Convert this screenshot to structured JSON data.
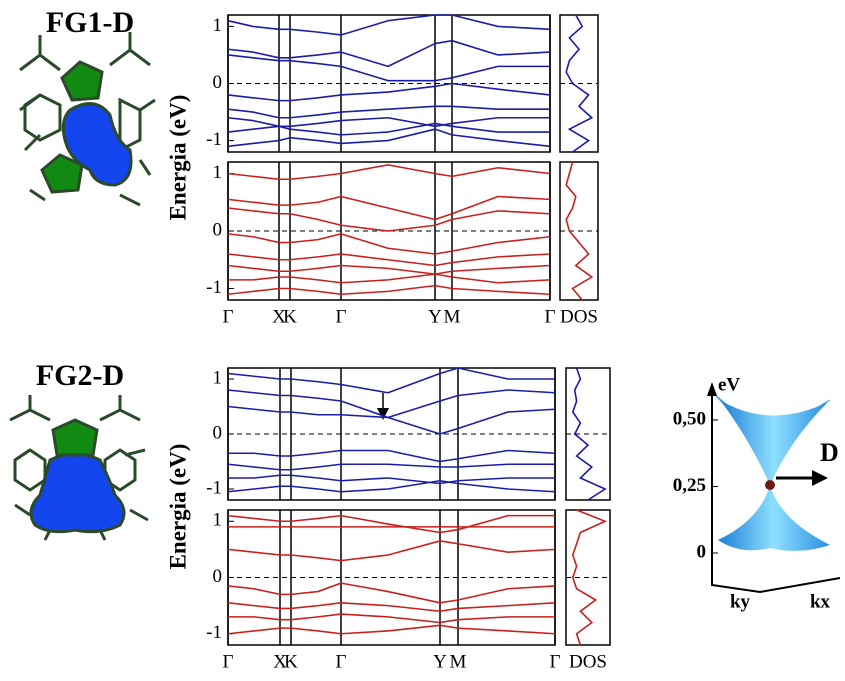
{
  "chart_data": [
    {
      "type": "bands",
      "title": "FG1-D",
      "ylabel": "Energia (eV)",
      "dos_label": "DOS",
      "x": [
        0,
        25,
        51,
        62,
        90,
        113,
        160,
        207,
        224,
        270,
        322
      ],
      "xlim": [
        0,
        322
      ],
      "xticks": [
        {
          "value": 0,
          "label": "Γ"
        },
        {
          "value": 51,
          "label": "X"
        },
        {
          "value": 62,
          "label": "K"
        },
        {
          "value": 113,
          "label": "Γ"
        },
        {
          "value": 207,
          "label": "Y"
        },
        {
          "value": 224,
          "label": "M"
        },
        {
          "value": 322,
          "label": "Γ"
        }
      ],
      "ylim": [
        -1.2,
        1.2
      ],
      "yticks": [
        1,
        0,
        -1
      ],
      "panels": [
        {
          "color": "#1c1ca8",
          "bands": [
            [
              1.1,
              1.0,
              0.95,
              0.95,
              0.9,
              0.85,
              1.1,
              1.2,
              1.2,
              1.0,
              0.95
            ],
            [
              0.6,
              0.55,
              0.45,
              0.45,
              0.5,
              0.55,
              0.3,
              0.7,
              0.75,
              0.5,
              0.55
            ],
            [
              0.5,
              0.45,
              0.4,
              0.4,
              0.35,
              0.3,
              0.05,
              0.05,
              0.1,
              0.3,
              0.3
            ],
            [
              -0.2,
              -0.25,
              -0.3,
              -0.3,
              -0.25,
              -0.2,
              -0.15,
              -0.05,
              0.0,
              -0.1,
              -0.2
            ],
            [
              -0.45,
              -0.5,
              -0.6,
              -0.6,
              -0.55,
              -0.5,
              -0.45,
              -0.4,
              -0.4,
              -0.45,
              -0.45
            ],
            [
              -0.6,
              -0.65,
              -0.75,
              -0.75,
              -0.7,
              -0.65,
              -0.6,
              -0.75,
              -0.7,
              -0.6,
              -0.6
            ],
            [
              -0.85,
              -0.8,
              -0.75,
              -0.8,
              -0.85,
              -0.9,
              -0.85,
              -0.7,
              -0.75,
              -0.85,
              -0.85
            ],
            [
              -1.1,
              -1.05,
              -1.0,
              -0.95,
              -1.0,
              -1.05,
              -1.0,
              -0.8,
              -0.9,
              -1.0,
              -1.1
            ]
          ]
        },
        {
          "color": "#c8201e",
          "bands": [
            [
              1.0,
              0.95,
              0.9,
              0.9,
              0.95,
              1.0,
              1.15,
              1.0,
              0.95,
              1.1,
              1.0
            ],
            [
              0.55,
              0.5,
              0.45,
              0.45,
              0.5,
              0.6,
              0.4,
              0.2,
              0.3,
              0.6,
              0.55
            ],
            [
              0.4,
              0.35,
              0.3,
              0.3,
              0.2,
              0.1,
              0.0,
              0.1,
              0.2,
              0.35,
              0.3
            ],
            [
              -0.05,
              -0.1,
              -0.2,
              -0.2,
              -0.15,
              -0.05,
              -0.3,
              -0.4,
              -0.35,
              -0.2,
              -0.1
            ],
            [
              -0.4,
              -0.45,
              -0.5,
              -0.5,
              -0.45,
              -0.4,
              -0.5,
              -0.6,
              -0.55,
              -0.45,
              -0.4
            ],
            [
              -0.6,
              -0.65,
              -0.7,
              -0.7,
              -0.65,
              -0.6,
              -0.65,
              -0.75,
              -0.7,
              -0.65,
              -0.6
            ],
            [
              -0.85,
              -0.85,
              -0.8,
              -0.8,
              -0.85,
              -0.9,
              -0.85,
              -0.75,
              -0.8,
              -0.9,
              -0.85
            ],
            [
              -1.1,
              -1.05,
              -1.0,
              -1.0,
              -1.05,
              -1.1,
              -1.05,
              -0.95,
              -1.0,
              -1.05,
              -1.1
            ]
          ]
        }
      ],
      "dos": {
        "energy": [
          -1.2,
          -1.0,
          -0.8,
          -0.6,
          -0.4,
          -0.2,
          0,
          0.2,
          0.4,
          0.6,
          0.8,
          1.0,
          1.2
        ],
        "series": [
          {
            "values": [
              0.3,
              0.8,
              0.2,
              0.9,
              0.5,
              0.8,
              0.3,
              0.1,
              0.2,
              0.5,
              0.2,
              0.6,
              0.4
            ]
          },
          {
            "values": [
              0.6,
              0.3,
              0.9,
              0.4,
              0.8,
              0.5,
              0.2,
              0.1,
              0.3,
              0.4,
              0.1,
              0.2,
              0.3
            ]
          }
        ]
      }
    },
    {
      "type": "bands",
      "title": "FG2-D",
      "ylabel": "Energia (eV)",
      "dos_label": "DOS",
      "x": [
        0,
        26,
        52,
        63,
        90,
        113,
        160,
        212,
        230,
        280,
        327
      ],
      "xlim": [
        0,
        327
      ],
      "xticks": [
        {
          "value": 0,
          "label": "Γ"
        },
        {
          "value": 52,
          "label": "X"
        },
        {
          "value": 63,
          "label": "K"
        },
        {
          "value": 113,
          "label": "Γ"
        },
        {
          "value": 212,
          "label": "Y"
        },
        {
          "value": 230,
          "label": "M"
        },
        {
          "value": 327,
          "label": "Γ"
        }
      ],
      "ylim": [
        -1.2,
        1.2
      ],
      "yticks": [
        1,
        0,
        -1
      ],
      "panels": [
        {
          "color": "#1c1ca8",
          "bands": [
            [
              1.1,
              1.05,
              1.0,
              1.0,
              0.95,
              0.9,
              0.75,
              1.1,
              1.2,
              1.0,
              1.0
            ],
            [
              0.8,
              0.75,
              0.7,
              0.7,
              0.65,
              0.6,
              0.3,
              0.6,
              0.7,
              0.8,
              0.75
            ],
            [
              0.5,
              0.45,
              0.4,
              0.4,
              0.35,
              0.35,
              0.3,
              0.0,
              0.1,
              0.4,
              0.45
            ],
            [
              -0.35,
              -0.35,
              -0.4,
              -0.4,
              -0.35,
              -0.3,
              -0.3,
              -0.5,
              -0.45,
              -0.3,
              -0.35
            ],
            [
              -0.55,
              -0.6,
              -0.65,
              -0.65,
              -0.6,
              -0.55,
              -0.55,
              -0.6,
              -0.6,
              -0.55,
              -0.55
            ],
            [
              -0.8,
              -0.8,
              -0.75,
              -0.75,
              -0.8,
              -0.85,
              -0.8,
              -0.9,
              -0.85,
              -0.8,
              -0.8
            ],
            [
              -1.05,
              -1.0,
              -0.95,
              -0.95,
              -1.0,
              -1.05,
              -1.0,
              -0.85,
              -0.9,
              -1.0,
              -1.05
            ]
          ]
        },
        {
          "color": "#c8201e",
          "bands": [
            [
              0.9,
              0.9,
              0.9,
              0.9,
              0.9,
              0.9,
              0.9,
              0.9,
              0.9,
              0.9,
              0.9
            ],
            [
              1.1,
              1.05,
              1.0,
              1.0,
              1.05,
              1.1,
              0.95,
              0.8,
              0.85,
              1.1,
              1.1
            ],
            [
              0.5,
              0.45,
              0.4,
              0.4,
              0.35,
              0.3,
              0.4,
              0.65,
              0.6,
              0.45,
              0.5
            ],
            [
              -0.15,
              -0.2,
              -0.3,
              -0.3,
              -0.25,
              -0.1,
              -0.25,
              -0.45,
              -0.4,
              -0.2,
              -0.15
            ],
            [
              -0.45,
              -0.5,
              -0.55,
              -0.55,
              -0.5,
              -0.45,
              -0.5,
              -0.6,
              -0.55,
              -0.5,
              -0.45
            ],
            [
              -0.7,
              -0.7,
              -0.75,
              -0.75,
              -0.7,
              -0.65,
              -0.7,
              -0.8,
              -0.75,
              -0.7,
              -0.7
            ],
            [
              -1.0,
              -0.95,
              -0.9,
              -0.9,
              -0.95,
              -1.0,
              -0.95,
              -0.85,
              -0.9,
              -0.95,
              -1.0
            ]
          ]
        }
      ],
      "dos": {
        "energy": [
          -1.2,
          -1.0,
          -0.8,
          -0.6,
          -0.4,
          -0.2,
          0,
          0.2,
          0.4,
          0.6,
          0.8,
          1.0,
          1.2
        ],
        "series": [
          {
            "values": [
              0.5,
              0.95,
              0.3,
              0.6,
              0.2,
              0.5,
              0.15,
              0.3,
              0.1,
              0.2,
              0.15,
              0.3,
              0.2
            ]
          },
          {
            "values": [
              0.3,
              0.2,
              0.6,
              0.3,
              0.7,
              0.2,
              0.1,
              0.2,
              0.1,
              0.2,
              0.3,
              0.95,
              0.2
            ]
          }
        ]
      }
    },
    {
      "type": "surface",
      "ylabel": "eV",
      "ylim": [
        0,
        0.62
      ],
      "yticks": [
        {
          "value": 0.5,
          "label": "0,50"
        },
        {
          "value": 0.25,
          "label": "0,25"
        },
        {
          "value": 0,
          "label": "0"
        }
      ],
      "annotation": "D",
      "ky_label": "ky",
      "kx_label": "kx"
    }
  ]
}
